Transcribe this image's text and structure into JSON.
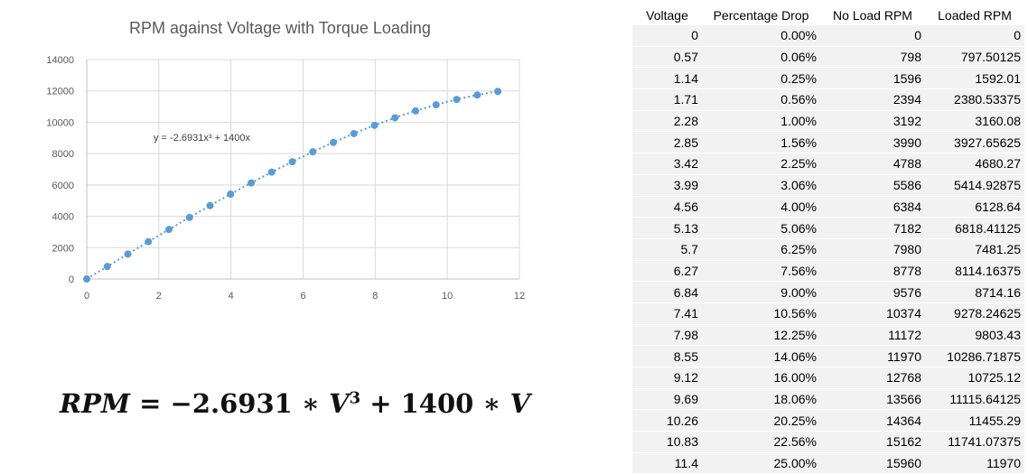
{
  "chart_data": {
    "type": "scatter",
    "title": "RPM against Voltage with Torque Loading",
    "xlabel": "",
    "ylabel": "",
    "xlim": [
      0,
      12
    ],
    "ylim": [
      0,
      14000
    ],
    "x_ticks": [
      "0",
      "2",
      "4",
      "6",
      "8",
      "10",
      "12"
    ],
    "y_ticks": [
      "0",
      "2000",
      "4000",
      "6000",
      "8000",
      "10000",
      "12000",
      "14000"
    ],
    "grid": true,
    "trendline": {
      "style": "dotted",
      "equation_label": "y = -2.6931x³ + 1400x"
    },
    "point_color": "#5b9bd5",
    "series": [
      {
        "x": [
          0,
          0.57,
          1.14,
          1.71,
          2.28,
          2.85,
          3.42,
          3.99,
          4.56,
          5.13,
          5.7,
          6.27,
          6.84,
          7.41,
          7.98,
          8.55,
          9.12,
          9.69,
          10.26,
          10.83,
          11.4
        ],
        "y": [
          0,
          797.50125,
          1592.01,
          2380.53375,
          3160.08,
          3927.65625,
          4680.27,
          5414.92875,
          6128.64,
          6818.41125,
          7481.25,
          8114.16375,
          8714.16,
          9278.24625,
          9803.43,
          10286.71875,
          10725.12,
          11115.64125,
          11455.29,
          11741.07375,
          11970
        ]
      }
    ]
  },
  "equation": {
    "lhs": "RPM",
    "eq": " = −",
    "coef1": "2.6931",
    "op1": " ∗ ",
    "var1": "V",
    "exp1": "3",
    "op2": " + ",
    "coef2": "1400",
    "op3": " ∗ ",
    "var2": "V"
  },
  "table": {
    "headers": [
      "Voltage",
      "Percentage Drop",
      "No Load RPM",
      "Loaded RPM"
    ],
    "rows": [
      [
        "0",
        "0.00%",
        "0",
        "0"
      ],
      [
        "0.57",
        "0.06%",
        "798",
        "797.50125"
      ],
      [
        "1.14",
        "0.25%",
        "1596",
        "1592.01"
      ],
      [
        "1.71",
        "0.56%",
        "2394",
        "2380.53375"
      ],
      [
        "2.28",
        "1.00%",
        "3192",
        "3160.08"
      ],
      [
        "2.85",
        "1.56%",
        "3990",
        "3927.65625"
      ],
      [
        "3.42",
        "2.25%",
        "4788",
        "4680.27"
      ],
      [
        "3.99",
        "3.06%",
        "5586",
        "5414.92875"
      ],
      [
        "4.56",
        "4.00%",
        "6384",
        "6128.64"
      ],
      [
        "5.13",
        "5.06%",
        "7182",
        "6818.41125"
      ],
      [
        "5.7",
        "6.25%",
        "7980",
        "7481.25"
      ],
      [
        "6.27",
        "7.56%",
        "8778",
        "8114.16375"
      ],
      [
        "6.84",
        "9.00%",
        "9576",
        "8714.16"
      ],
      [
        "7.41",
        "10.56%",
        "10374",
        "9278.24625"
      ],
      [
        "7.98",
        "12.25%",
        "11172",
        "9803.43"
      ],
      [
        "8.55",
        "14.06%",
        "11970",
        "10286.71875"
      ],
      [
        "9.12",
        "16.00%",
        "12768",
        "10725.12"
      ],
      [
        "9.69",
        "18.06%",
        "13566",
        "11115.64125"
      ],
      [
        "10.26",
        "20.25%",
        "14364",
        "11455.29"
      ],
      [
        "10.83",
        "22.56%",
        "15162",
        "11741.07375"
      ],
      [
        "11.4",
        "25.00%",
        "15960",
        "11970"
      ]
    ]
  }
}
